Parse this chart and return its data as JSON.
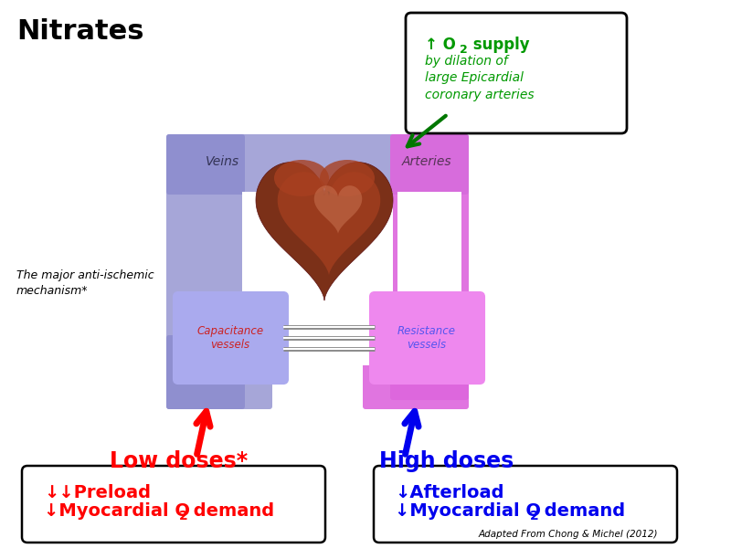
{
  "title": "Nitrates",
  "title_fontsize": 22,
  "background_color": "#ffffff",
  "veins_color": "#8888cc",
  "arteries_color": "#dd66dd",
  "cap_label": "Capacitance\nvessels",
  "cap_label_color": "#cc2222",
  "res_label": "Resistance\nvessels",
  "res_label_color": "#5555ee",
  "o2_text_line1": "↑ O",
  "o2_text_line1b": "2",
  "o2_text_line1c": " supply",
  "o2_text_line2": "by dilation of\nlarge Epicardial\ncoronary arteries",
  "o2_text_color": "#009900",
  "low_doses_text": "Low doses*",
  "low_doses_color": "#ff0000",
  "high_doses_text": "High doses",
  "high_doses_color": "#0000ee",
  "low_line1": "↓↓Preload",
  "low_line2a": "↓Myocardial O",
  "low_line2b": "2",
  "low_line2c": " demand",
  "low_color": "#ff0000",
  "high_line1": "↓Afterload",
  "high_line2a": "↓Myocardial O",
  "high_line2b": "2",
  "high_line2c": " demand",
  "high_color": "#0000ee",
  "anti_text": "The major anti-ischemic\nmechanism*",
  "credit_text": "Adapted From Chong & Michel (2012)"
}
